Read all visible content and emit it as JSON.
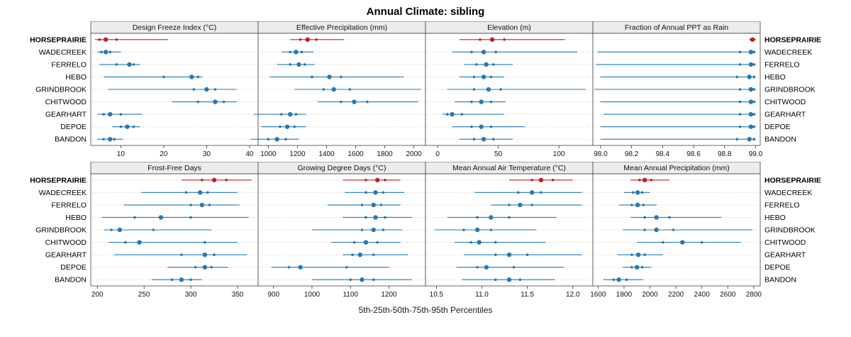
{
  "title": "Annual Climate: sibling",
  "footer": "5th-25th-50th-75th-95th Percentiles",
  "colors": {
    "highlight": "#c41f1f",
    "normal": "#2878b4",
    "strip_bg": "#ececec",
    "grid": "#b5b5b5",
    "border": "#444444"
  },
  "stations": [
    {
      "name": "HORSEPRAIRIE",
      "highlight": true
    },
    {
      "name": "WADECREEK",
      "highlight": false
    },
    {
      "name": "FERRELO",
      "highlight": false
    },
    {
      "name": "HEBO",
      "highlight": false
    },
    {
      "name": "GRINDBROOK",
      "highlight": false
    },
    {
      "name": "CHITWOOD",
      "highlight": false
    },
    {
      "name": "GEARHART",
      "highlight": false
    },
    {
      "name": "DEPOE",
      "highlight": false
    },
    {
      "name": "BANDON",
      "highlight": false
    }
  ],
  "chart_data": {
    "type": "dotplot-percentiles",
    "percentiles": [
      5,
      25,
      50,
      75,
      95
    ],
    "legend": "whisker = 5th-95th, small dots = 25th/75th, large dot = median",
    "rows": [
      {
        "panels": [
          {
            "title": "Design Freeze Index (°C)",
            "domain": [
              3,
              42
            ],
            "ticks": [
              10,
              20,
              30,
              40
            ],
            "tick_labels": [
              "10",
              "20",
              "30",
              "40"
            ],
            "values": {
              "HORSEPRAIRIE": [
                4,
                5,
                6.5,
                9,
                21
              ],
              "WADECREEK": [
                4.5,
                5.5,
                6.5,
                7.5,
                10
              ],
              "FERRELO": [
                5,
                9,
                12,
                13,
                14.5
              ],
              "HEBO": [
                6,
                20,
                26.5,
                28,
                29
              ],
              "GRINDBROOK": [
                7,
                27,
                30,
                32,
                37
              ],
              "CHITWOOD": [
                22,
                28,
                32,
                34,
                37
              ],
              "GEARHART": [
                4.5,
                6,
                7.5,
                10,
                15
              ],
              "DEPOE": [
                8,
                10,
                11.5,
                13,
                14.5
              ],
              "BANDON": [
                4.5,
                6,
                7.5,
                8.5,
                10.5
              ]
            }
          },
          {
            "title": "Effective Precipitation (mm)",
            "domain": [
              930,
              2080
            ],
            "ticks": [
              1000,
              1200,
              1400,
              1600,
              1800,
              2000
            ],
            "tick_labels": [
              "1000",
              "1200",
              "1400",
              "1600",
              "1800",
              "2000"
            ],
            "values": {
              "HORSEPRAIRIE": [
                1150,
                1220,
                1270,
                1330,
                1520
              ],
              "WADECREEK": [
                1090,
                1150,
                1190,
                1230,
                1310
              ],
              "FERRELO": [
                1060,
                1150,
                1210,
                1250,
                1320
              ],
              "HEBO": [
                1010,
                1300,
                1420,
                1500,
                1930
              ],
              "GRINDBROOK": [
                1180,
                1380,
                1450,
                1560,
                2050
              ],
              "CHITWOOD": [
                1340,
                1500,
                1590,
                1680,
                2030
              ],
              "GEARHART": [
                900,
                1090,
                1150,
                1190,
                1260
              ],
              "DEPOE": [
                950,
                1080,
                1130,
                1180,
                1260
              ],
              "BANDON": [
                880,
                1000,
                1060,
                1120,
                1210
              ]
            }
          },
          {
            "title": "Elevation (m)",
            "domain": [
              -10,
              128
            ],
            "ticks": [
              0,
              50,
              100
            ],
            "tick_labels": [
              "0",
              "50",
              "100"
            ],
            "values": {
              "HORSEPRAIRIE": [
                18,
                35,
                45,
                55,
                105
              ],
              "WADECREEK": [
                12,
                28,
                38,
                48,
                115
              ],
              "FERRELO": [
                22,
                32,
                40,
                46,
                62
              ],
              "HEBO": [
                18,
                30,
                38,
                44,
                55
              ],
              "GRINDBROOK": [
                8,
                30,
                42,
                52,
                122
              ],
              "CHITWOOD": [
                14,
                28,
                36,
                44,
                56
              ],
              "GEARHART": [
                4,
                8,
                12,
                20,
                55
              ],
              "DEPOE": [
                12,
                28,
                36,
                44,
                72
              ],
              "BANDON": [
                18,
                30,
                38,
                46,
                62
              ]
            }
          },
          {
            "title": "Fraction of Annual PPT as Rain",
            "domain": [
              97.95,
              99.03
            ],
            "ticks": [
              98.0,
              98.2,
              98.4,
              98.6,
              98.8,
              99.0
            ],
            "tick_labels": [
              "98.0",
              "98.2",
              "98.4",
              "98.6",
              "98.8",
              "99.0"
            ],
            "values": {
              "HORSEPRAIRIE": [
                98.96,
                98.97,
                98.98,
                98.99,
                99.0
              ],
              "WADECREEK": [
                97.98,
                98.9,
                98.97,
                98.99,
                99.0
              ],
              "FERRELO": [
                97.97,
                98.9,
                98.97,
                98.99,
                99.0
              ],
              "HEBO": [
                98.0,
                98.88,
                98.96,
                98.99,
                99.0
              ],
              "GRINDBROOK": [
                97.96,
                98.9,
                98.97,
                98.99,
                99.0
              ],
              "CHITWOOD": [
                98.0,
                98.9,
                98.97,
                98.99,
                99.0
              ],
              "GEARHART": [
                98.02,
                98.9,
                98.97,
                98.99,
                99.0
              ],
              "DEPOE": [
                98.0,
                98.9,
                98.97,
                98.99,
                99.0
              ],
              "BANDON": [
                98.0,
                98.88,
                98.96,
                98.99,
                99.0
              ]
            }
          }
        ]
      },
      {
        "panels": [
          {
            "title": "Frost-Free Days",
            "domain": [
              193,
              372
            ],
            "ticks": [
              200,
              250,
              300,
              350
            ],
            "tick_labels": [
              "200",
              "250",
              "300",
              "350"
            ],
            "values": {
              "HORSEPRAIRIE": [
                290,
                312,
                325,
                338,
                365
              ],
              "WADECREEK": [
                247,
                295,
                310,
                318,
                350
              ],
              "FERRELO": [
                228,
                300,
                312,
                320,
                352
              ],
              "HEBO": [
                205,
                240,
                268,
                300,
                362
              ],
              "GRINDBROOK": [
                207,
                215,
                224,
                260,
                322
              ],
              "CHITWOOD": [
                212,
                230,
                245,
                315,
                350
              ],
              "GEARHART": [
                218,
                290,
                315,
                325,
                360
              ],
              "DEPOE": [
                275,
                305,
                315,
                322,
                340
              ],
              "BANDON": [
                258,
                280,
                290,
                300,
                312
              ]
            }
          },
          {
            "title": "Growing Degree Days (°C)",
            "domain": [
              860,
              1295
            ],
            "ticks": [
              900,
              1000,
              1100,
              1200
            ],
            "tick_labels": [
              "900",
              "1000",
              "1100",
              "1200"
            ],
            "values": {
              "HORSEPRAIRIE": [
                1080,
                1140,
                1170,
                1190,
                1230
              ],
              "WADECREEK": [
                1085,
                1140,
                1165,
                1185,
                1240
              ],
              "FERRELO": [
                1040,
                1130,
                1160,
                1180,
                1230
              ],
              "HEBO": [
                1080,
                1140,
                1165,
                1190,
                1260
              ],
              "GRINDBROOK": [
                1000,
                1130,
                1160,
                1185,
                1235
              ],
              "CHITWOOD": [
                1050,
                1110,
                1140,
                1170,
                1230
              ],
              "GEARHART": [
                1080,
                1105,
                1125,
                1160,
                1250
              ],
              "DEPOE": [
                895,
                940,
                970,
                1090,
                1200
              ],
              "BANDON": [
                1000,
                1100,
                1130,
                1160,
                1260
              ]
            }
          },
          {
            "title": "Mean Annual Air Temperature (°C)",
            "domain": [
              10.38,
              12.22
            ],
            "ticks": [
              10.5,
              11.0,
              11.5,
              12.0
            ],
            "tick_labels": [
              "10.5",
              "11.0",
              "11.5",
              "12.0"
            ],
            "values": {
              "HORSEPRAIRIE": [
                11.3,
                11.55,
                11.65,
                11.78,
                12.0
              ],
              "WADECREEK": [
                10.92,
                11.4,
                11.55,
                11.65,
                12.1
              ],
              "FERRELO": [
                11.1,
                11.3,
                11.42,
                11.55,
                12.1
              ],
              "HEBO": [
                10.62,
                10.95,
                11.1,
                11.3,
                11.82
              ],
              "GRINDBROOK": [
                10.48,
                10.8,
                10.95,
                11.1,
                11.6
              ],
              "CHITWOOD": [
                10.7,
                10.88,
                10.97,
                11.15,
                11.7
              ],
              "GEARHART": [
                10.8,
                11.15,
                11.3,
                11.5,
                12.1
              ],
              "DEPOE": [
                10.72,
                10.95,
                11.05,
                11.35,
                11.9
              ],
              "BANDON": [
                10.78,
                11.15,
                11.3,
                11.42,
                11.8
              ]
            }
          },
          {
            "title": "Mean Annual Precipitation (mm)",
            "domain": [
              1560,
              2850
            ],
            "ticks": [
              1600,
              1800,
              2000,
              2200,
              2400,
              2600,
              2800
            ],
            "tick_labels": [
              "1600",
              "1800",
              "2000",
              "2200",
              "2400",
              "2600",
              "2800"
            ],
            "values": {
              "HORSEPRAIRIE": [
                1850,
                1920,
                1960,
                2010,
                2150
              ],
              "WADECREEK": [
                1800,
                1870,
                1905,
                1940,
                2000
              ],
              "FERRELO": [
                1760,
                1860,
                1905,
                1950,
                2050
              ],
              "HEBO": [
                1850,
                1960,
                2050,
                2150,
                2550
              ],
              "GRINDBROOK": [
                1790,
                1960,
                2050,
                2180,
                2790
              ],
              "CHITWOOD": [
                1900,
                2100,
                2250,
                2400,
                2700
              ],
              "GEARHART": [
                1750,
                1860,
                1910,
                1960,
                2100
              ],
              "DEPOE": [
                1790,
                1860,
                1900,
                1940,
                2010
              ],
              "BANDON": [
                1640,
                1720,
                1760,
                1820,
                1950
              ]
            }
          }
        ]
      }
    ]
  }
}
